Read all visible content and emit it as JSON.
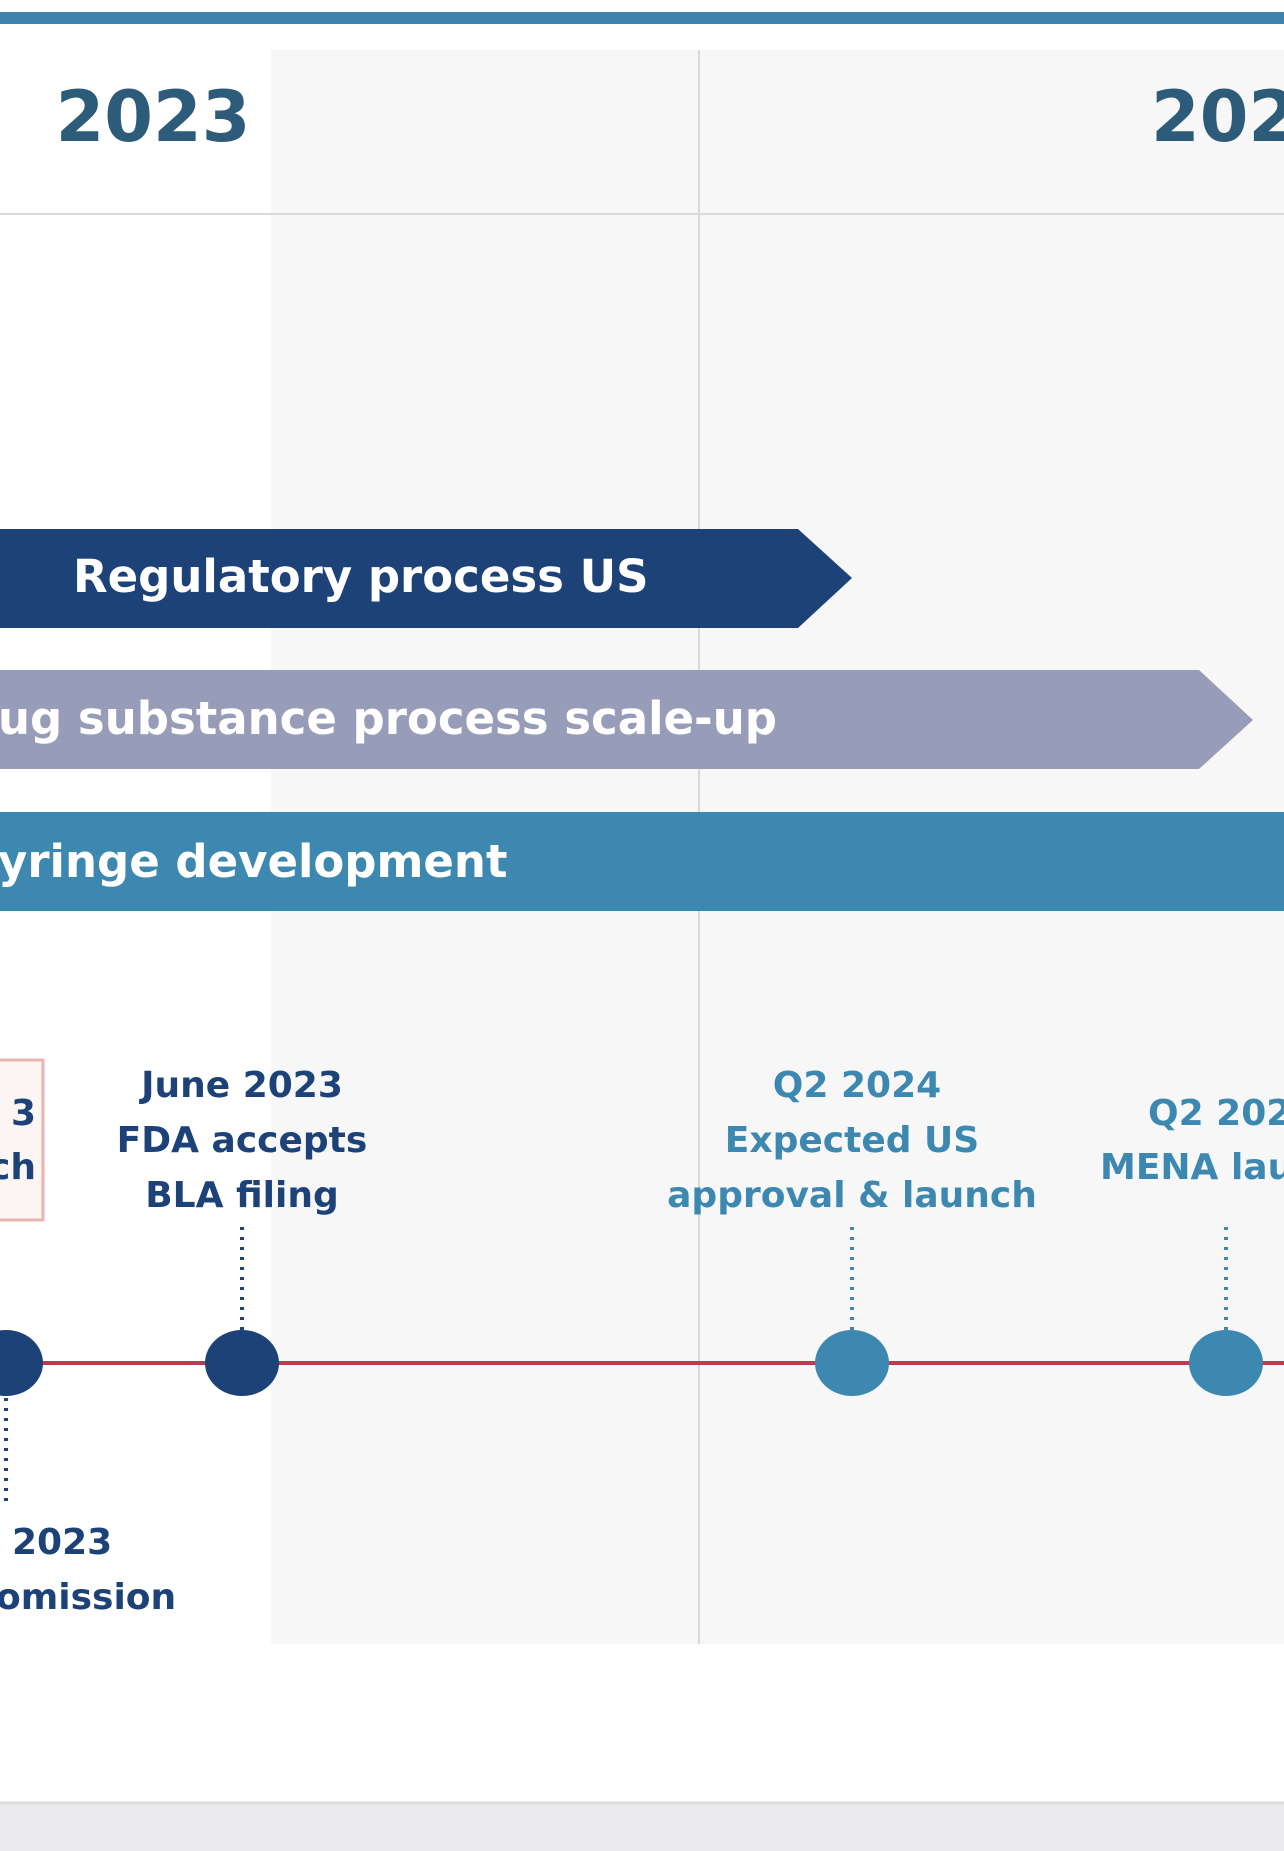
{
  "header": {
    "years": [
      "2023",
      "202"
    ]
  },
  "bars": [
    "Regulatory process US",
    "ug substance process scale-up",
    "yringe development"
  ],
  "milestones": [
    {
      "lines": [
        "3",
        "ch"
      ]
    },
    {
      "lines": [
        "June 2023",
        "FDA accepts",
        "BLA filing"
      ]
    },
    {
      "lines": [
        "Q2 2024",
        "Expected US",
        "approval & launch"
      ]
    },
    {
      "lines": [
        "Q2 202",
        "MENA lau"
      ]
    },
    {
      "lines": [
        "2023",
        "omission"
      ]
    }
  ]
}
